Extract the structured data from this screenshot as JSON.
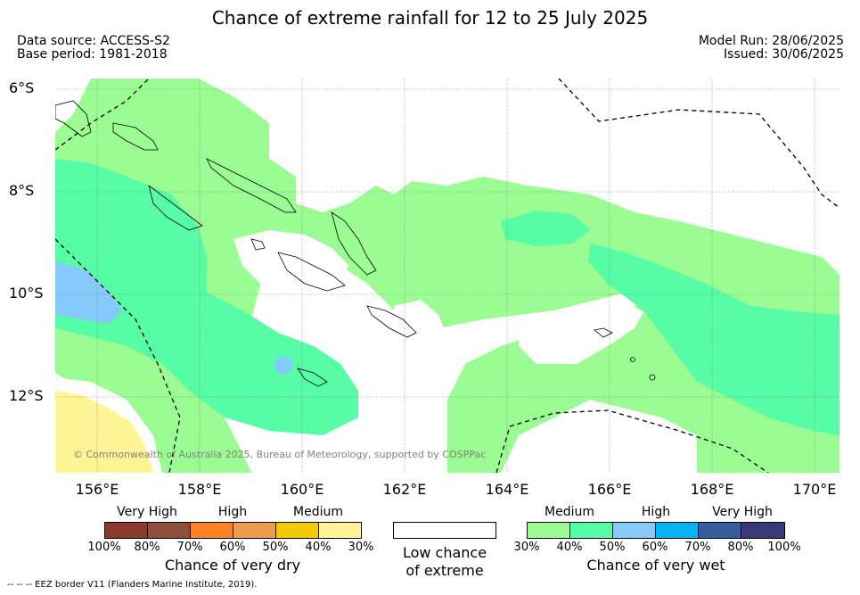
{
  "title": "Chance of extreme rainfall for 12 to 25 July 2025",
  "meta": {
    "data_source": "Data source: ACCESS-S2",
    "base_period": "Base period: 1981-2018",
    "model_run": "Model Run: 28/06/2025",
    "issued": "Issued: 30/06/2025"
  },
  "map": {
    "lat_labels": [
      "6°S",
      "8°S",
      "10°S",
      "12°S"
    ],
    "lon_labels": [
      "156°E",
      "158°E",
      "160°E",
      "162°E",
      "164°E",
      "166°E",
      "168°E",
      "170°E"
    ],
    "copyright": "© Commonwealth of Australia 2025, Bureau of Meteorology, supported by COSPPac",
    "colors": {
      "medium_wet": "#9bfc93",
      "high_wet": "#56fca6",
      "very_high_wet": "#86cafc",
      "medium_dry": "#fcf495",
      "low": "#ffffff"
    }
  },
  "legend": {
    "dry": {
      "categories": [
        "Very High",
        "High",
        "Medium"
      ],
      "ticks": [
        "100%",
        "80%",
        "70%",
        "60%",
        "50%",
        "40%",
        "30%"
      ],
      "colors": [
        "#8b3a30",
        "#8e4e3c",
        "#fd8224",
        "#ec9c4c",
        "#f3cb05",
        "#fcf495"
      ],
      "title": "Chance of very dry"
    },
    "low": {
      "title_line1": "Low chance",
      "title_line2": "of extreme"
    },
    "wet": {
      "categories": [
        "Medium",
        "High",
        "Very High"
      ],
      "ticks": [
        "30%",
        "40%",
        "50%",
        "60%",
        "70%",
        "80%",
        "100%"
      ],
      "colors": [
        "#9bfc93",
        "#56fca6",
        "#86cafc",
        "#06b2f1",
        "#355d9c",
        "#3c3777"
      ],
      "title": "Chance of very wet"
    }
  },
  "footnote": "--  --  -- EEZ border V11 (Flanders Marine Institute, 2019)."
}
